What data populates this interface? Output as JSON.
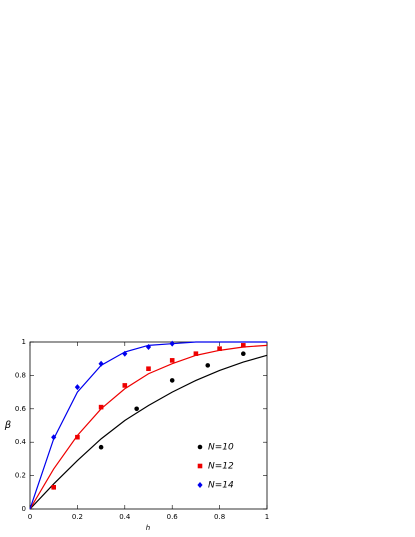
{
  "chart_data": {
    "type": "scatter",
    "xlabel": "h",
    "ylabel": "β",
    "xlim": [
      0,
      1
    ],
    "ylim": [
      0,
      1
    ],
    "xticks": [
      0,
      0.2,
      0.4,
      0.6,
      0.8,
      1
    ],
    "yticks": [
      0,
      0.2,
      0.4,
      0.6,
      0.8,
      1
    ],
    "legend": "right",
    "series": [
      {
        "name": "N=10",
        "color": "#000000",
        "marker": "circle",
        "x": [
          0.1,
          0.3,
          0.45,
          0.6,
          0.75,
          0.9
        ],
        "values": [
          0.13,
          0.37,
          0.6,
          0.77,
          0.86,
          0.93
        ]
      },
      {
        "name": "N=12",
        "color": "#ee0000",
        "marker": "square",
        "x": [
          0.1,
          0.2,
          0.3,
          0.4,
          0.5,
          0.6,
          0.7,
          0.8,
          0.9
        ],
        "values": [
          0.13,
          0.43,
          0.61,
          0.74,
          0.84,
          0.89,
          0.93,
          0.96,
          0.98
        ]
      },
      {
        "name": "N=14",
        "color": "#0000ee",
        "marker": "diamond",
        "x": [
          0.1,
          0.2,
          0.3,
          0.4,
          0.5,
          0.6
        ],
        "values": [
          0.43,
          0.73,
          0.87,
          0.93,
          0.97,
          0.99
        ]
      }
    ],
    "fits": [
      {
        "color": "#000000",
        "x": [
          0,
          0.1,
          0.2,
          0.3,
          0.4,
          0.5,
          0.6,
          0.7,
          0.8,
          0.9,
          1
        ],
        "values": [
          0,
          0.15,
          0.29,
          0.42,
          0.53,
          0.62,
          0.7,
          0.77,
          0.83,
          0.88,
          0.92
        ]
      },
      {
        "color": "#ee0000",
        "x": [
          0,
          0.1,
          0.2,
          0.3,
          0.4,
          0.5,
          0.6,
          0.7,
          0.8,
          0.9,
          1
        ],
        "values": [
          0,
          0.24,
          0.44,
          0.6,
          0.72,
          0.81,
          0.87,
          0.92,
          0.95,
          0.97,
          0.98
        ]
      },
      {
        "color": "#0000ee",
        "x": [
          0,
          0.1,
          0.2,
          0.3,
          0.4,
          0.5,
          0.6,
          0.7,
          0.8,
          0.9,
          1
        ],
        "values": [
          0,
          0.42,
          0.7,
          0.86,
          0.94,
          0.98,
          0.99,
          1,
          1,
          1,
          1
        ]
      }
    ]
  }
}
